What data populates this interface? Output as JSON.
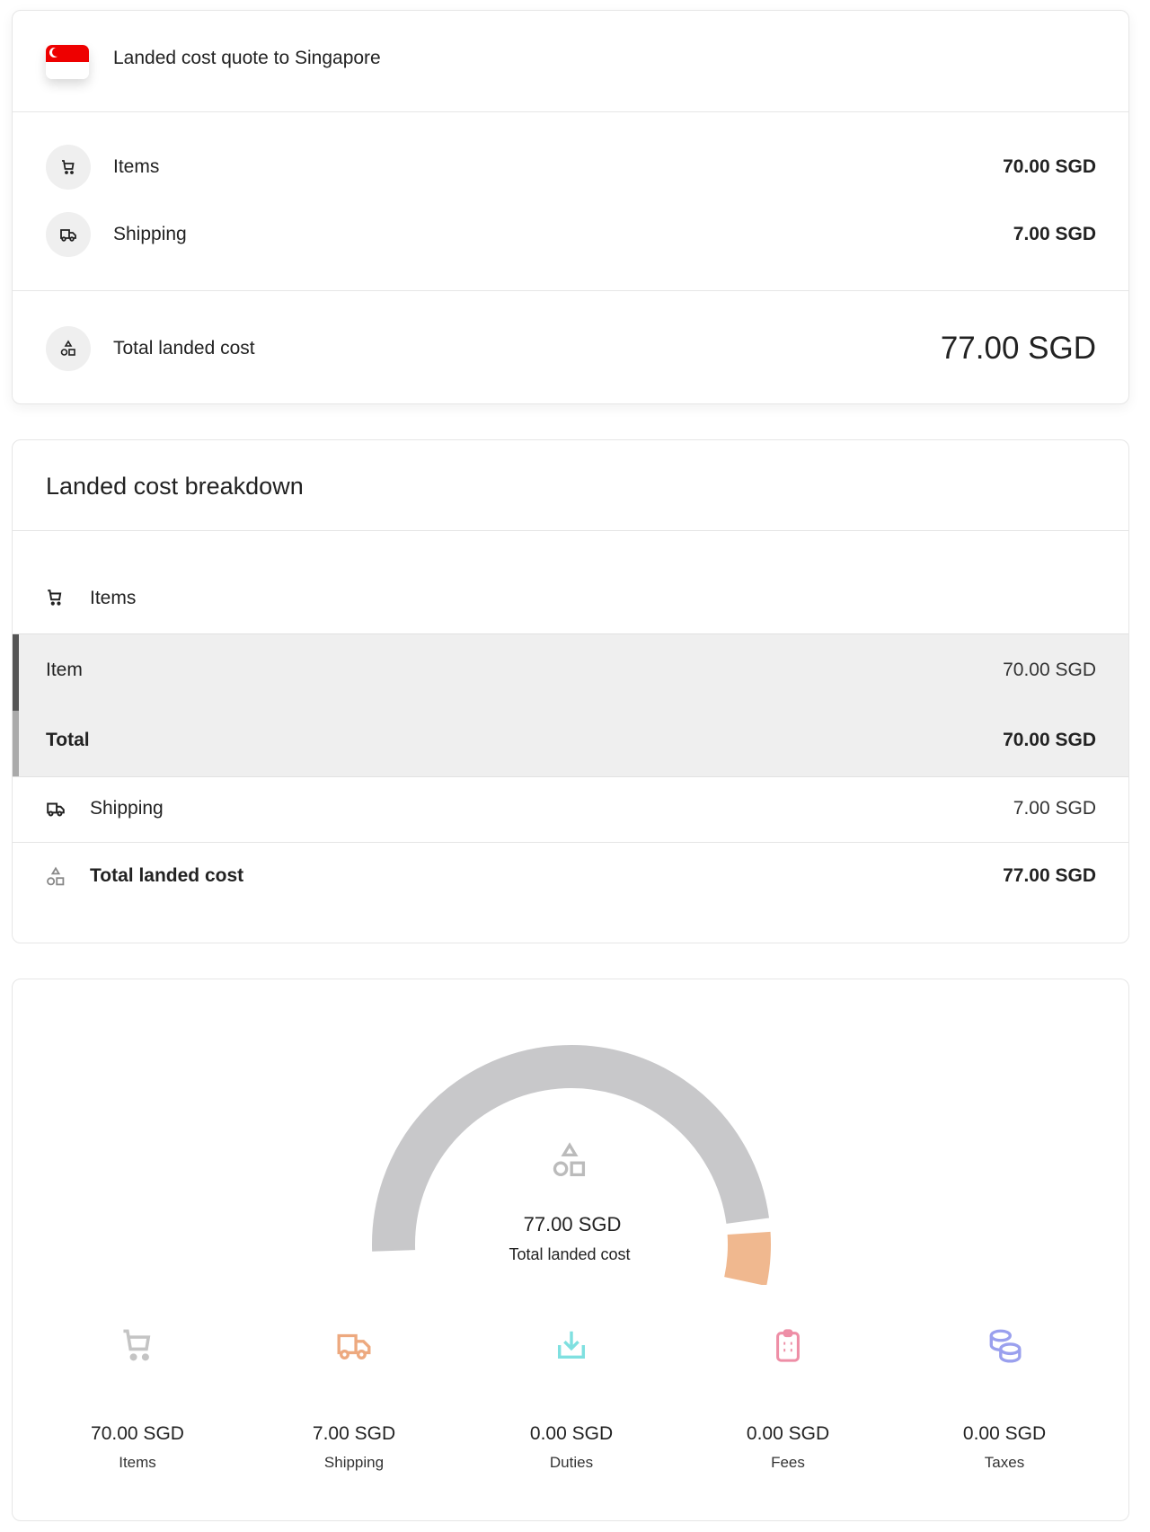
{
  "quote": {
    "title": "Landed cost quote to Singapore",
    "flag_icon": "singapore-flag-icon",
    "rows": [
      {
        "label": "Items",
        "value": "70.00 SGD",
        "icon": "cart-icon"
      },
      {
        "label": "Shipping",
        "value": "7.00 SGD",
        "icon": "truck-icon"
      }
    ],
    "total_label": "Total landed cost",
    "total_value": "77.00 SGD"
  },
  "breakdown": {
    "title": "Landed cost breakdown",
    "items_header": "Items",
    "item_label": "Item",
    "item_value": "70.00 SGD",
    "items_total_label": "Total",
    "items_total_value": "70.00 SGD",
    "shipping_label": "Shipping",
    "shipping_value": "7.00 SGD",
    "total_label": "Total landed cost",
    "total_value": "77.00 SGD"
  },
  "summary": {
    "gauge_value": "77.00 SGD",
    "gauge_label": "Total landed cost",
    "segments": [
      {
        "name": "Items",
        "amount": 70,
        "color": "#c8c8ca"
      },
      {
        "name": "Shipping",
        "amount": 7,
        "color": "#f0b88f"
      }
    ],
    "stats": [
      {
        "value": "70.00 SGD",
        "label": "Items",
        "icon": "cart-icon",
        "color": "#c4c4c4"
      },
      {
        "value": "7.00 SGD",
        "label": "Shipping",
        "icon": "truck-icon",
        "color": "#eda97f"
      },
      {
        "value": "0.00 SGD",
        "label": "Duties",
        "icon": "download-icon",
        "color": "#7fe0e0"
      },
      {
        "value": "0.00 SGD",
        "label": "Fees",
        "icon": "clipboard-icon",
        "color": "#ee8ea6"
      },
      {
        "value": "0.00 SGD",
        "label": "Taxes",
        "icon": "coins-icon",
        "color": "#9aa0ee"
      }
    ]
  }
}
